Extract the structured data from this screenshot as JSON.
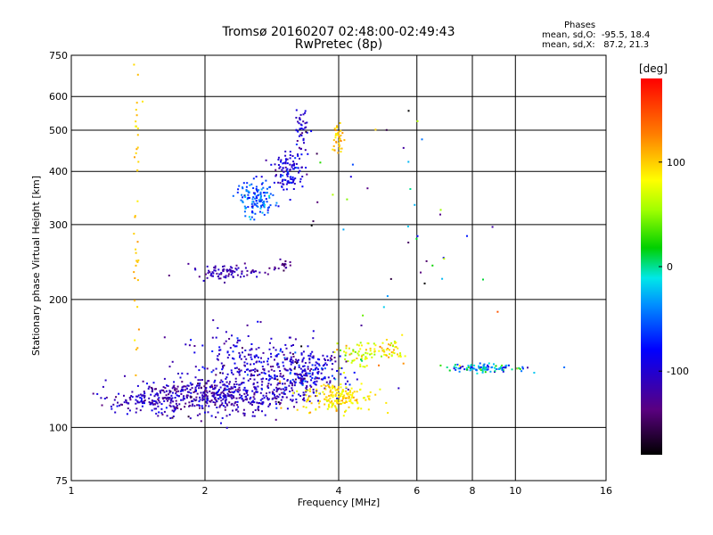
{
  "chart_data": {
    "type": "scatter",
    "title": "Tromsø 20160207 02:48:00-02:49:43",
    "subtitle": "RwPretec (8p)",
    "xlabel": "Frequency [MHz]",
    "ylabel": "Stationary phase Virtual Height [km]",
    "x_scale": "log",
    "y_scale": "log",
    "xlim": [
      1,
      16
    ],
    "ylim": [
      75,
      750
    ],
    "x_ticks": [
      1,
      2,
      4,
      6,
      8,
      10,
      16
    ],
    "x_tick_labels": [
      "1",
      "2",
      "4",
      "6",
      "8",
      "10",
      "16"
    ],
    "y_ticks": [
      75,
      100,
      200,
      300,
      400,
      500,
      600,
      750
    ],
    "y_tick_labels": [
      "75",
      "100",
      "200",
      "300",
      "400",
      "500",
      "600",
      "750"
    ],
    "grid": true,
    "phase_stats": {
      "title": "Phases",
      "line_o": "mean, sd,O:  -95.5, 18.4",
      "line_x": "mean, sd,X:   87.2, 21.3"
    },
    "colorbar": {
      "label": "[deg]",
      "range": [
        -180,
        180
      ],
      "ticks": [
        100,
        0,
        -100
      ],
      "tick_labels": [
        "100",
        "0",
        "-100"
      ]
    },
    "clusters": [
      {
        "cx": 2.1,
        "cy": 118,
        "sx": 0.22,
        "sy": 0.05,
        "n": 500,
        "phase": -110,
        "psd": 18
      },
      {
        "cx": 1.4,
        "cy": 115,
        "sx": 0.1,
        "sy": 0.03,
        "n": 90,
        "phase": -108,
        "psd": 15
      },
      {
        "cx": 2.6,
        "cy": 140,
        "sx": 0.18,
        "sy": 0.09,
        "n": 280,
        "phase": -105,
        "psd": 18
      },
      {
        "cx": 3.3,
        "cy": 133,
        "sx": 0.11,
        "sy": 0.06,
        "n": 200,
        "phase": -100,
        "psd": 25
      },
      {
        "cx": 4.0,
        "cy": 118,
        "sx": 0.09,
        "sy": 0.04,
        "n": 180,
        "phase": 92,
        "psd": 12
      },
      {
        "cx": 4.5,
        "cy": 148,
        "sx": 0.06,
        "sy": 0.04,
        "n": 70,
        "phase": 75,
        "psd": 25
      },
      {
        "cx": 5.3,
        "cy": 152,
        "sx": 0.03,
        "sy": 0.03,
        "n": 40,
        "phase": 90,
        "psd": 20
      },
      {
        "cx": 8.4,
        "cy": 138,
        "sx": 0.12,
        "sy": 0.01,
        "n": 110,
        "phase": -35,
        "psd": 35
      },
      {
        "cx": 2.6,
        "cy": 345,
        "sx": 0.05,
        "sy": 0.05,
        "n": 130,
        "phase": -55,
        "psd": 20
      },
      {
        "cx": 3.1,
        "cy": 400,
        "sx": 0.04,
        "sy": 0.05,
        "n": 110,
        "phase": -95,
        "psd": 18
      },
      {
        "cx": 3.3,
        "cy": 500,
        "sx": 0.02,
        "sy": 0.07,
        "n": 40,
        "phase": -100,
        "psd": 15
      },
      {
        "cx": 2.2,
        "cy": 232,
        "sx": 0.09,
        "sy": 0.02,
        "n": 90,
        "phase": -115,
        "psd": 12
      },
      {
        "cx": 3.0,
        "cy": 240,
        "sx": 0.03,
        "sy": 0.02,
        "n": 18,
        "phase": -130,
        "psd": 10
      },
      {
        "cx": 4.0,
        "cy": 480,
        "sx": 0.012,
        "sy": 0.05,
        "n": 40,
        "phase": 102,
        "psd": 10
      },
      {
        "cx": 1.4,
        "cy": 320,
        "sx": 0.01,
        "sy": 0.5,
        "n": 40,
        "phase": 100,
        "psd": 10
      },
      {
        "cx": 5.2,
        "cy": 260,
        "sx": 0.25,
        "sy": 0.5,
        "n": 45,
        "phase": -60,
        "psd": 90
      }
    ]
  }
}
